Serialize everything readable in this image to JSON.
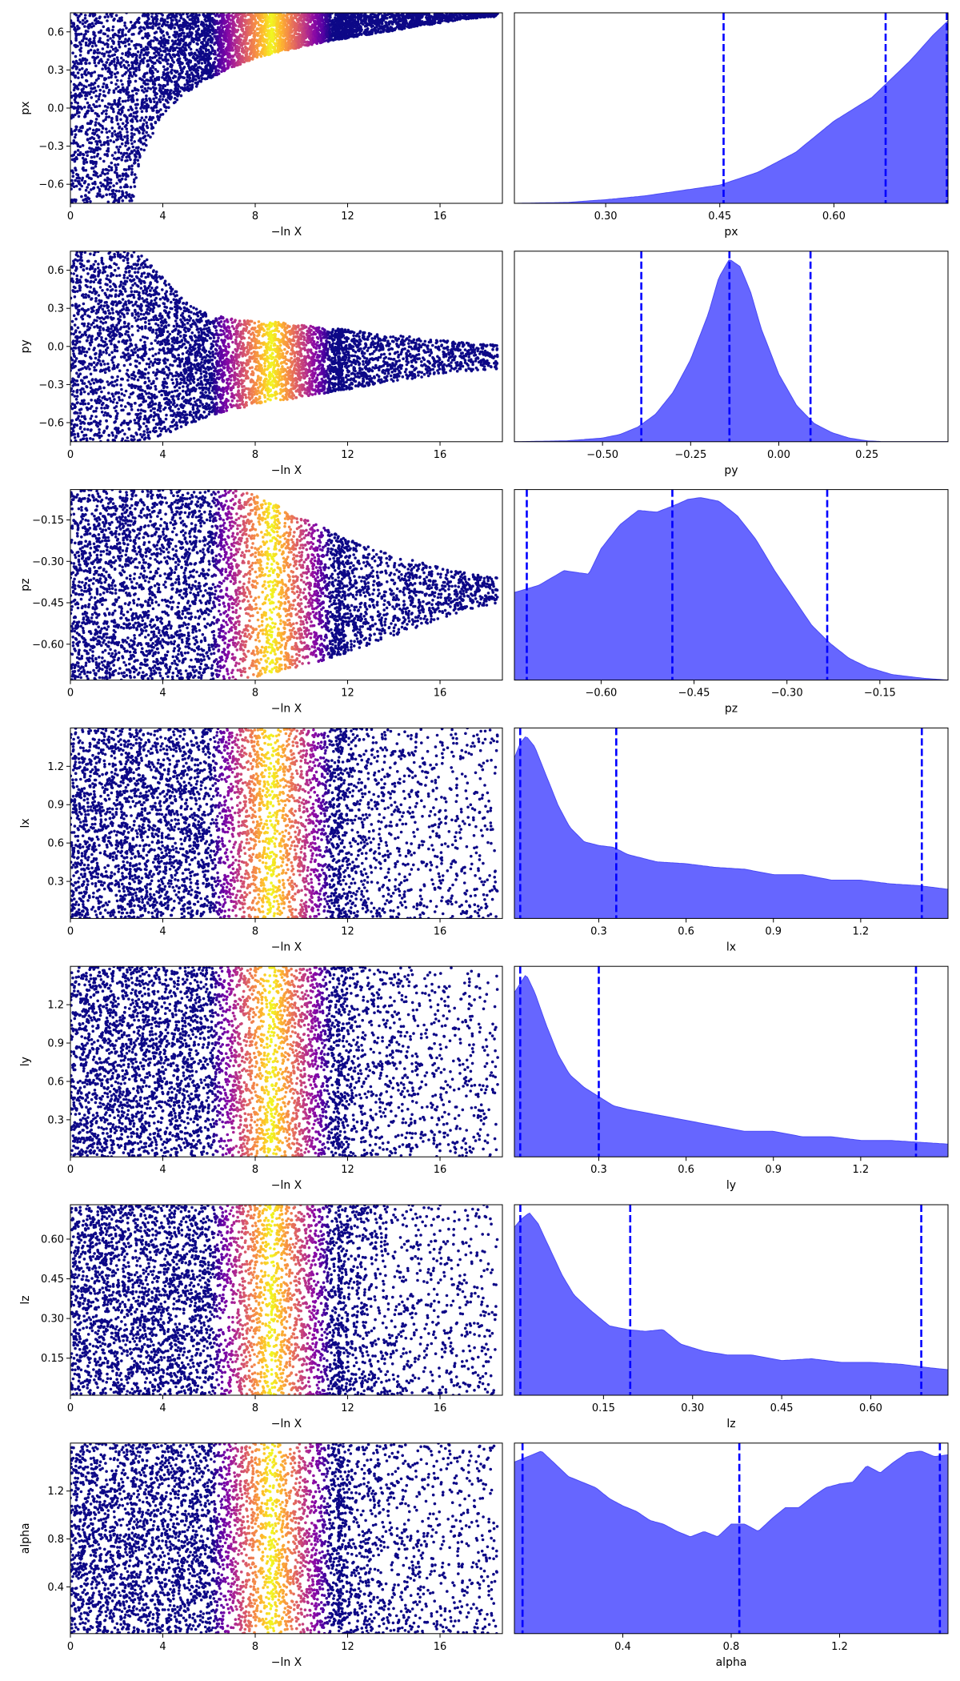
{
  "chart_data": [
    {
      "type": "scatter",
      "parameter": "px",
      "xlabel": "−ln X",
      "ylabel": "px",
      "xlim": [
        0,
        18.7
      ],
      "ylim": [
        -0.75,
        0.75
      ],
      "xticks": [
        0,
        4,
        8,
        12,
        16
      ],
      "xtick_labels": [
        "0",
        "4",
        "8",
        "12",
        "16"
      ],
      "yticks": [
        -0.6,
        -0.3,
        0.0,
        0.3,
        0.6
      ],
      "ytick_labels": [
        "−0.6",
        "−0.3",
        "0.0",
        "0.3",
        "0.6"
      ],
      "colormap": "plasma",
      "color_peak": 8.7,
      "envelope": {
        "x": [
          0,
          2.7,
          3,
          4,
          5,
          6,
          7,
          8,
          9,
          10,
          11,
          12,
          13,
          14,
          15,
          16,
          17,
          18.5
        ],
        "lo": [
          -0.75,
          -0.75,
          -0.4,
          -0.05,
          0.12,
          0.23,
          0.32,
          0.39,
          0.44,
          0.48,
          0.52,
          0.55,
          0.58,
          0.61,
          0.64,
          0.67,
          0.7,
          0.72
        ],
        "hi": [
          0.75,
          0.75,
          0.75,
          0.75,
          0.75,
          0.75,
          0.75,
          0.75,
          0.75,
          0.75,
          0.75,
          0.75,
          0.75,
          0.75,
          0.75,
          0.75,
          0.75,
          0.75
        ]
      }
    },
    {
      "type": "area",
      "parameter": "px",
      "xlabel": "px",
      "xlim": [
        0.18,
        0.75
      ],
      "xticks": [
        0.3,
        0.45,
        0.6
      ],
      "xtick_labels": [
        "0.30",
        "0.45",
        "0.60"
      ],
      "fill_color": "#6666ff",
      "vline_color": "#0000ff",
      "vlines": [
        0.455,
        0.668,
        0.75
      ],
      "density": {
        "x": [
          0.18,
          0.25,
          0.3,
          0.35,
          0.4,
          0.45,
          0.5,
          0.55,
          0.6,
          0.65,
          0.7,
          0.73,
          0.75
        ],
        "y": [
          0.0,
          0.005,
          0.02,
          0.04,
          0.07,
          0.1,
          0.17,
          0.28,
          0.45,
          0.58,
          0.78,
          0.92,
          1.0
        ]
      }
    },
    {
      "type": "scatter",
      "parameter": "py",
      "xlabel": "−ln X",
      "ylabel": "py",
      "xlim": [
        0,
        18.7
      ],
      "ylim": [
        -0.75,
        0.75
      ],
      "xticks": [
        0,
        4,
        8,
        12,
        16
      ],
      "xtick_labels": [
        "0",
        "4",
        "8",
        "12",
        "16"
      ],
      "yticks": [
        -0.6,
        -0.3,
        0.0,
        0.3,
        0.6
      ],
      "ytick_labels": [
        "−0.6",
        "−0.3",
        "0.0",
        "0.3",
        "0.6"
      ],
      "colormap": "plasma",
      "color_peak": 8.7,
      "envelope": {
        "x": [
          0,
          3,
          4,
          5,
          6,
          7,
          8,
          9,
          10,
          11,
          12,
          13,
          14,
          15,
          16,
          17,
          18.5
        ],
        "lo": [
          -0.75,
          -0.75,
          -0.7,
          -0.62,
          -0.55,
          -0.5,
          -0.46,
          -0.43,
          -0.4,
          -0.37,
          -0.34,
          -0.31,
          -0.28,
          -0.25,
          -0.22,
          -0.2,
          -0.18
        ],
        "hi": [
          0.75,
          0.75,
          0.55,
          0.35,
          0.25,
          0.22,
          0.2,
          0.19,
          0.17,
          0.15,
          0.13,
          0.11,
          0.09,
          0.07,
          0.05,
          0.03,
          0.01
        ]
      }
    },
    {
      "type": "area",
      "parameter": "py",
      "xlabel": "py",
      "xlim": [
        -0.75,
        0.48
      ],
      "xticks": [
        -0.5,
        -0.25,
        0.0,
        0.25
      ],
      "xtick_labels": [
        "−0.50",
        "−0.25",
        "0.00",
        "0.25"
      ],
      "fill_color": "#6666ff",
      "vline_color": "#0000ff",
      "vlines": [
        -0.39,
        -0.14,
        0.09
      ],
      "density": {
        "x": [
          -0.75,
          -0.6,
          -0.5,
          -0.45,
          -0.4,
          -0.35,
          -0.3,
          -0.25,
          -0.2,
          -0.17,
          -0.14,
          -0.11,
          -0.08,
          -0.05,
          0.0,
          0.05,
          0.1,
          0.15,
          0.2,
          0.25,
          0.3,
          0.48
        ],
        "y": [
          0.0,
          0.005,
          0.02,
          0.04,
          0.08,
          0.15,
          0.27,
          0.45,
          0.7,
          0.9,
          1.0,
          0.96,
          0.82,
          0.62,
          0.37,
          0.2,
          0.1,
          0.05,
          0.02,
          0.005,
          0.0,
          0.0
        ]
      }
    },
    {
      "type": "scatter",
      "parameter": "pz",
      "xlabel": "−ln X",
      "ylabel": "pz",
      "xlim": [
        0,
        18.7
      ],
      "ylim": [
        -0.73,
        -0.04
      ],
      "xticks": [
        0,
        4,
        8,
        12,
        16
      ],
      "xtick_labels": [
        "0",
        "4",
        "8",
        "12",
        "16"
      ],
      "yticks": [
        -0.6,
        -0.45,
        -0.3,
        -0.15
      ],
      "ytick_labels": [
        "−0.60",
        "−0.45",
        "−0.30",
        "−0.15"
      ],
      "colormap": "plasma",
      "color_peak": 8.7,
      "envelope": {
        "x": [
          0,
          7,
          8,
          9,
          10,
          11,
          12,
          13,
          14,
          15,
          16,
          17,
          18.5
        ],
        "lo": [
          -0.73,
          -0.73,
          -0.72,
          -0.7,
          -0.68,
          -0.66,
          -0.63,
          -0.6,
          -0.57,
          -0.54,
          -0.51,
          -0.48,
          -0.45
        ],
        "hi": [
          -0.04,
          -0.04,
          -0.06,
          -0.1,
          -0.14,
          -0.18,
          -0.22,
          -0.25,
          -0.28,
          -0.3,
          -0.32,
          -0.34,
          -0.36
        ]
      }
    },
    {
      "type": "area",
      "parameter": "pz",
      "xlabel": "pz",
      "xlim": [
        -0.74,
        -0.04
      ],
      "xticks": [
        -0.6,
        -0.45,
        -0.3,
        -0.15
      ],
      "xtick_labels": [
        "−0.60",
        "−0.45",
        "−0.30",
        "−0.15"
      ],
      "fill_color": "#6666ff",
      "vline_color": "#0000ff",
      "vlines": [
        -0.72,
        -0.485,
        -0.235
      ],
      "density": {
        "x": [
          -0.74,
          -0.7,
          -0.66,
          -0.62,
          -0.6,
          -0.57,
          -0.54,
          -0.51,
          -0.48,
          -0.46,
          -0.44,
          -0.41,
          -0.38,
          -0.35,
          -0.32,
          -0.29,
          -0.26,
          -0.23,
          -0.2,
          -0.17,
          -0.13,
          -0.08,
          -0.04
        ],
        "y": [
          0.48,
          0.52,
          0.6,
          0.58,
          0.72,
          0.85,
          0.93,
          0.92,
          0.96,
          0.99,
          1.0,
          0.98,
          0.9,
          0.77,
          0.6,
          0.45,
          0.3,
          0.2,
          0.12,
          0.07,
          0.03,
          0.01,
          0.0
        ]
      }
    },
    {
      "type": "scatter",
      "parameter": "lx",
      "xlabel": "−ln X",
      "ylabel": "lx",
      "xlim": [
        0,
        18.7
      ],
      "ylim": [
        0.01,
        1.5
      ],
      "xticks": [
        0,
        4,
        8,
        12,
        16
      ],
      "xtick_labels": [
        "0",
        "4",
        "8",
        "12",
        "16"
      ],
      "yticks": [
        0.3,
        0.6,
        0.9,
        1.2
      ],
      "ytick_labels": [
        "0.3",
        "0.6",
        "0.9",
        "1.2"
      ],
      "colormap": "plasma",
      "color_peak": 8.7,
      "envelope": {
        "x": [
          0,
          18.5
        ],
        "lo": [
          0.01,
          0.01
        ],
        "hi": [
          1.5,
          1.5
        ]
      },
      "tail_density": "decreasing"
    },
    {
      "type": "area",
      "parameter": "lx",
      "xlabel": "lx",
      "xlim": [
        0.01,
        1.5
      ],
      "xticks": [
        0.3,
        0.6,
        0.9,
        1.2
      ],
      "xtick_labels": [
        "0.3",
        "0.6",
        "0.9",
        "1.2"
      ],
      "fill_color": "#6666ff",
      "vline_color": "#0000ff",
      "vlines": [
        0.03,
        0.36,
        1.41
      ],
      "density": {
        "x": [
          0.01,
          0.03,
          0.05,
          0.08,
          0.12,
          0.16,
          0.2,
          0.25,
          0.3,
          0.35,
          0.4,
          0.5,
          0.6,
          0.7,
          0.8,
          0.9,
          1.0,
          1.1,
          1.2,
          1.3,
          1.4,
          1.5
        ],
        "y": [
          0.88,
          0.96,
          1.0,
          0.94,
          0.78,
          0.62,
          0.5,
          0.42,
          0.4,
          0.39,
          0.35,
          0.31,
          0.3,
          0.28,
          0.27,
          0.24,
          0.24,
          0.21,
          0.21,
          0.19,
          0.18,
          0.16
        ]
      }
    },
    {
      "type": "scatter",
      "parameter": "ly",
      "xlabel": "−ln X",
      "ylabel": "ly",
      "xlim": [
        0,
        18.7
      ],
      "ylim": [
        0.01,
        1.5
      ],
      "xticks": [
        0,
        4,
        8,
        12,
        16
      ],
      "xtick_labels": [
        "0",
        "4",
        "8",
        "12",
        "16"
      ],
      "yticks": [
        0.3,
        0.6,
        0.9,
        1.2
      ],
      "ytick_labels": [
        "0.3",
        "0.6",
        "0.9",
        "1.2"
      ],
      "colormap": "plasma",
      "color_peak": 8.7,
      "envelope": {
        "x": [
          0,
          18.5
        ],
        "lo": [
          0.01,
          0.01
        ],
        "hi": [
          1.5,
          1.5
        ]
      },
      "tail_density": "decreasing"
    },
    {
      "type": "area",
      "parameter": "ly",
      "xlabel": "ly",
      "xlim": [
        0.01,
        1.5
      ],
      "xticks": [
        0.3,
        0.6,
        0.9,
        1.2
      ],
      "xtick_labels": [
        "0.3",
        "0.6",
        "0.9",
        "1.2"
      ],
      "fill_color": "#6666ff",
      "vline_color": "#0000ff",
      "vlines": [
        0.03,
        0.3,
        1.39
      ],
      "density": {
        "x": [
          0.01,
          0.03,
          0.05,
          0.08,
          0.12,
          0.16,
          0.2,
          0.25,
          0.3,
          0.35,
          0.4,
          0.5,
          0.6,
          0.7,
          0.8,
          0.9,
          1.0,
          1.1,
          1.2,
          1.3,
          1.4,
          1.5
        ],
        "y": [
          0.9,
          0.95,
          1.0,
          0.9,
          0.72,
          0.56,
          0.45,
          0.38,
          0.33,
          0.28,
          0.26,
          0.23,
          0.2,
          0.17,
          0.14,
          0.14,
          0.11,
          0.11,
          0.09,
          0.09,
          0.08,
          0.07
        ]
      }
    },
    {
      "type": "scatter",
      "parameter": "lz",
      "xlabel": "−ln X",
      "ylabel": "lz",
      "xlim": [
        0,
        18.7
      ],
      "ylim": [
        0.01,
        0.73
      ],
      "xticks": [
        0,
        4,
        8,
        12,
        16
      ],
      "xtick_labels": [
        "0",
        "4",
        "8",
        "12",
        "16"
      ],
      "yticks": [
        0.15,
        0.3,
        0.45,
        0.6
      ],
      "ytick_labels": [
        "0.15",
        "0.30",
        "0.45",
        "0.60"
      ],
      "colormap": "plasma",
      "color_peak": 8.7,
      "envelope": {
        "x": [
          0,
          18.5
        ],
        "lo": [
          0.01,
          0.01
        ],
        "hi": [
          0.73,
          0.73
        ]
      },
      "tail_density": "decreasing"
    },
    {
      "type": "area",
      "parameter": "lz",
      "xlabel": "lz",
      "xlim": [
        0.0,
        0.73
      ],
      "xticks": [
        0.15,
        0.3,
        0.45,
        0.6
      ],
      "xtick_labels": [
        "0.15",
        "0.30",
        "0.45",
        "0.60"
      ],
      "fill_color": "#6666ff",
      "vline_color": "#0000ff",
      "vlines": [
        0.01,
        0.195,
        0.685
      ],
      "density": {
        "x": [
          0.0,
          0.01,
          0.025,
          0.04,
          0.06,
          0.08,
          0.1,
          0.13,
          0.16,
          0.19,
          0.22,
          0.25,
          0.28,
          0.32,
          0.36,
          0.4,
          0.45,
          0.5,
          0.55,
          0.6,
          0.65,
          0.7,
          0.73
        ],
        "y": [
          0.92,
          0.96,
          1.0,
          0.94,
          0.8,
          0.66,
          0.55,
          0.46,
          0.38,
          0.36,
          0.35,
          0.36,
          0.28,
          0.24,
          0.22,
          0.22,
          0.19,
          0.2,
          0.18,
          0.18,
          0.17,
          0.15,
          0.14
        ]
      }
    },
    {
      "type": "scatter",
      "parameter": "alpha",
      "xlabel": "−ln X",
      "ylabel": "alpha",
      "xlim": [
        0,
        18.7
      ],
      "ylim": [
        0.01,
        1.6
      ],
      "xticks": [
        0,
        4,
        8,
        12,
        16
      ],
      "xtick_labels": [
        "0",
        "4",
        "8",
        "12",
        "16"
      ],
      "yticks": [
        0.4,
        0.8,
        1.2
      ],
      "ytick_labels": [
        "0.4",
        "0.8",
        "1.2"
      ],
      "colormap": "plasma",
      "color_peak": 8.7,
      "envelope": {
        "x": [
          0,
          18.5
        ],
        "lo": [
          0.01,
          0.01
        ],
        "hi": [
          1.6,
          1.6
        ]
      },
      "tail_density": "decreasing"
    },
    {
      "type": "area",
      "parameter": "alpha",
      "xlabel": "alpha",
      "xlim": [
        0.0,
        1.6
      ],
      "xticks": [
        0.4,
        0.8,
        1.2
      ],
      "xtick_labels": [
        "0.4",
        "0.8",
        "1.2"
      ],
      "fill_color": "#6666ff",
      "vline_color": "#0000ff",
      "vlines": [
        0.03,
        0.83,
        1.57
      ],
      "density": {
        "x": [
          0.0,
          0.05,
          0.1,
          0.15,
          0.2,
          0.25,
          0.3,
          0.35,
          0.4,
          0.45,
          0.5,
          0.55,
          0.6,
          0.65,
          0.7,
          0.75,
          0.8,
          0.85,
          0.9,
          0.95,
          1.0,
          1.05,
          1.1,
          1.15,
          1.2,
          1.25,
          1.3,
          1.35,
          1.4,
          1.45,
          1.5,
          1.55,
          1.6
        ],
        "y": [
          0.94,
          0.97,
          1.0,
          0.93,
          0.86,
          0.83,
          0.8,
          0.74,
          0.7,
          0.67,
          0.62,
          0.6,
          0.56,
          0.53,
          0.56,
          0.53,
          0.6,
          0.6,
          0.56,
          0.63,
          0.69,
          0.69,
          0.75,
          0.8,
          0.82,
          0.83,
          0.92,
          0.88,
          0.94,
          0.99,
          1.0,
          0.97,
          0.98
        ]
      }
    }
  ]
}
